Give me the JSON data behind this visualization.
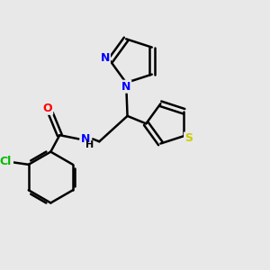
{
  "background_color": "#e8e8e8",
  "bond_color": "#000000",
  "bond_width": 1.8,
  "atom_colors": {
    "N": "#0000ff",
    "O": "#ff0000",
    "Cl": "#00bb00",
    "S": "#cccc00",
    "C": "#000000",
    "H": "#000000"
  },
  "figsize": [
    3.0,
    3.0
  ],
  "dpi": 100
}
